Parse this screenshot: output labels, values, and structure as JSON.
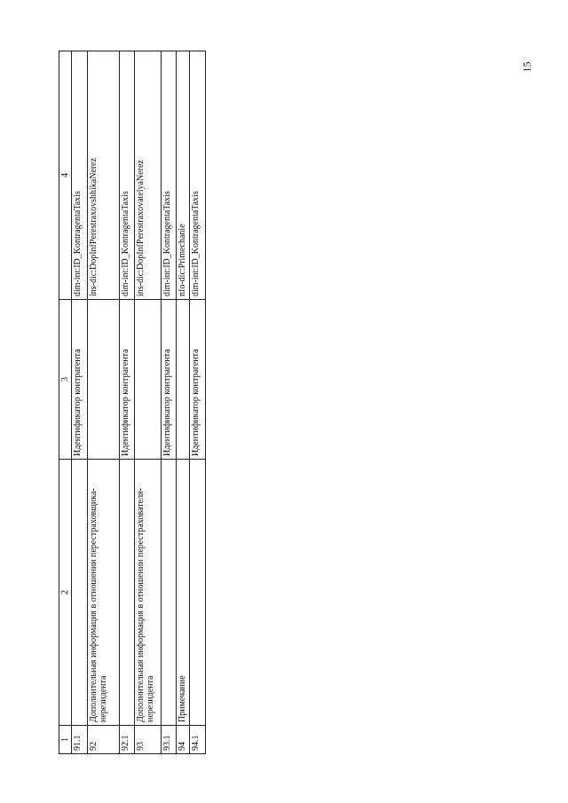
{
  "page_number": "15",
  "table": {
    "headers": [
      "1",
      "2",
      "3",
      "4"
    ],
    "rows": [
      [
        "91.1",
        "",
        "Идентификатор контрагента",
        "dim-int:ID_KontragentaTaxis"
      ],
      [
        "92",
        "Дополнительная информация в отношении перестраховщика-нерезидента",
        "",
        "ins-dic:DopInfPerestraxovshhikaNerez"
      ],
      [
        "92.1",
        "",
        "Идентификатор контрагента",
        "dim-int:ID_KontragentaTaxis"
      ],
      [
        "93",
        "Дополнительная информация в отношении перестрахователя-нерезидента",
        "",
        "ins-dic:DopInfPerestraxovatelyaNerez"
      ],
      [
        "93.1",
        "",
        "Идентификатор контрагента",
        "dim-int:ID_KontragentaTaxis"
      ],
      [
        "94",
        "Примечание",
        "",
        "nfo-dic:Primechanie"
      ],
      [
        "94.1",
        "",
        "Идентификатор контрагента",
        "dim-int:ID_KontragentaTaxis"
      ]
    ]
  }
}
